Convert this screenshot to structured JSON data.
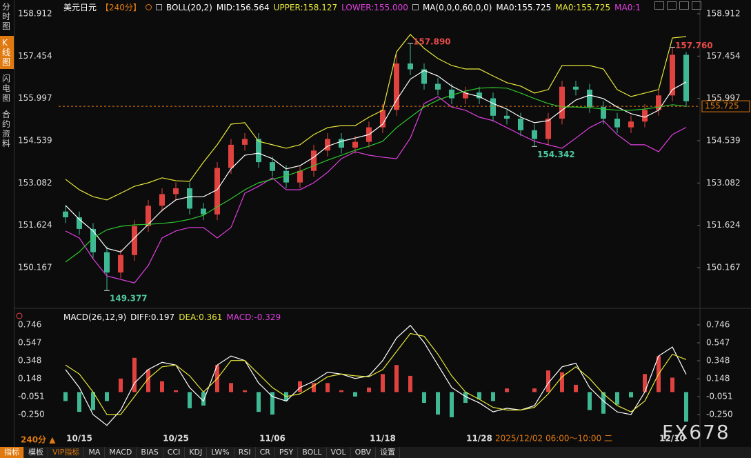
{
  "sidebar": {
    "tabs": [
      "分时图",
      "K线图",
      "闪电图",
      "合约资料"
    ],
    "active": 1
  },
  "header": [
    {
      "text": "美元日元",
      "color": "#ffffff"
    },
    {
      "text": "【240分】",
      "color": "#e07a10"
    },
    {
      "text": "BOLL(20,2)",
      "color": "#ffffff"
    },
    {
      "text": "MID:156.564",
      "color": "#ffffff"
    },
    {
      "text": "UPPER:158.127",
      "color": "#e8e83a"
    },
    {
      "text": "LOWER:155.000",
      "color": "#e040e0"
    },
    {
      "text": "MA(0,0,0,60,0,0)",
      "color": "#ffffff"
    },
    {
      "text": "MA0:155.725",
      "color": "#ffffff"
    },
    {
      "text": "MA0:155.725",
      "color": "#e8e83a"
    },
    {
      "text": "MA0:1",
      "color": "#e040e0"
    }
  ],
  "macd_header": [
    {
      "text": "MACD(26,12,9)",
      "color": "#ffffff"
    },
    {
      "text": "DIFF:0.197",
      "color": "#ffffff"
    },
    {
      "text": "DEA:0.361",
      "color": "#e8e83a"
    },
    {
      "text": "MACD:-0.329",
      "color": "#e040e0"
    }
  ],
  "period_label": "240分 ▲",
  "cursor_label": "2025/12/02 06:00～10:00 二",
  "watermark": "FX678",
  "toolbar": {
    "items": [
      "指标",
      "模板",
      "VIP指标",
      "MA",
      "MACD",
      "BIAS",
      "CCI",
      "KDJ",
      "LW%",
      "RSI",
      "CR",
      "PSY",
      "BOLL",
      "VOL",
      "OBV",
      "设置"
    ],
    "active": 0
  },
  "chart_data": [
    {
      "type": "candlestick",
      "categories": [
        null,
        "10/15",
        null,
        null,
        null,
        null,
        null,
        null,
        "10/25",
        null,
        null,
        null,
        null,
        null,
        null,
        "11/06",
        null,
        null,
        null,
        null,
        null,
        null,
        null,
        "11/18",
        null,
        null,
        null,
        null,
        null,
        null,
        "11/28",
        null,
        null,
        null,
        null,
        null,
        null,
        null,
        null,
        null,
        null,
        null,
        null,
        null,
        "12/10",
        null
      ],
      "open": [
        152.1,
        151.9,
        151.5,
        150.7,
        150.0,
        150.6,
        151.6,
        152.3,
        152.7,
        152.9,
        152.2,
        152.0,
        153.6,
        154.4,
        154.6,
        153.8,
        153.5,
        153.1,
        153.5,
        154.2,
        154.6,
        154.3,
        154.5,
        155.0,
        155.6,
        157.2,
        157.0,
        156.5,
        156.3,
        156.0,
        156.2,
        156.0,
        155.4,
        155.3,
        154.9,
        154.6,
        155.3,
        156.4,
        156.3,
        155.7,
        155.3,
        155.0,
        155.2,
        155.6,
        156.1,
        157.5
      ],
      "high": [
        152.3,
        152.1,
        151.7,
        150.9,
        150.8,
        151.8,
        152.5,
        152.9,
        153.1,
        153.1,
        152.4,
        153.8,
        154.6,
        154.8,
        154.8,
        154.0,
        153.7,
        153.7,
        154.4,
        154.8,
        154.8,
        154.7,
        155.2,
        155.8,
        157.5,
        157.89,
        157.2,
        156.7,
        156.5,
        156.4,
        156.4,
        156.2,
        155.6,
        155.5,
        155.1,
        155.5,
        156.6,
        156.6,
        156.5,
        155.9,
        155.5,
        155.4,
        155.8,
        156.3,
        157.76,
        157.6
      ],
      "low": [
        151.7,
        151.3,
        150.5,
        149.377,
        149.8,
        150.4,
        151.4,
        152.1,
        152.5,
        152.0,
        151.8,
        151.8,
        153.4,
        154.2,
        153.6,
        153.3,
        152.9,
        152.9,
        153.3,
        154.0,
        154.1,
        154.1,
        154.3,
        154.8,
        155.4,
        156.8,
        156.3,
        156.1,
        155.8,
        155.8,
        155.8,
        155.2,
        155.1,
        154.7,
        154.342,
        154.4,
        155.1,
        156.1,
        155.5,
        155.1,
        154.8,
        154.8,
        155.0,
        155.4,
        155.9,
        155.7
      ],
      "close": [
        151.9,
        151.5,
        150.7,
        150.0,
        150.6,
        151.6,
        152.3,
        152.7,
        152.9,
        152.2,
        152.0,
        153.6,
        154.4,
        154.6,
        153.8,
        153.5,
        153.1,
        153.5,
        154.2,
        154.6,
        154.3,
        154.5,
        155.0,
        155.6,
        157.2,
        157.0,
        156.5,
        156.3,
        156.0,
        156.2,
        156.0,
        155.4,
        155.3,
        154.9,
        154.6,
        155.3,
        156.4,
        156.3,
        155.7,
        155.3,
        155.0,
        155.2,
        155.6,
        156.1,
        157.5,
        155.9
      ],
      "up_color": "#e0433f",
      "down_color": "#3fb894",
      "series": [
        {
          "color": "#e8e83a",
          "values": [
            153.21,
            152.85,
            152.61,
            152.5,
            152.73,
            152.97,
            153.09,
            153.26,
            153.16,
            153.14,
            153.8,
            154.4,
            155.11,
            155.16,
            154.52,
            154.4,
            154.28,
            154.4,
            154.75,
            154.99,
            155.06,
            155.06,
            155.35,
            155.59,
            157.6,
            158.2,
            157.72,
            157.37,
            157.13,
            157.01,
            157.01,
            156.77,
            156.54,
            156.42,
            156.18,
            156.3,
            157.13,
            157.13,
            157.13,
            157.01,
            156.3,
            156.06,
            156.18,
            156.3,
            158.08,
            158.127
          ]
        },
        {
          "color": "#ffffff",
          "values": [
            152.31,
            151.83,
            151.43,
            150.83,
            150.71,
            151.19,
            151.66,
            152.14,
            152.5,
            152.61,
            152.61,
            152.85,
            153.57,
            154.04,
            154.11,
            153.92,
            153.57,
            153.68,
            153.97,
            154.35,
            154.52,
            154.63,
            154.75,
            155.11,
            155.94,
            156.66,
            156.96,
            156.77,
            156.42,
            156.18,
            156.06,
            155.82,
            155.63,
            155.35,
            155.16,
            155.23,
            155.59,
            155.94,
            156.11,
            155.99,
            155.7,
            155.47,
            155.35,
            155.59,
            156.3,
            156.564
          ]
        },
        {
          "color": "#e040e0",
          "values": [
            151.43,
            151.19,
            150.47,
            149.88,
            149.76,
            149.64,
            150.24,
            151.19,
            151.43,
            151.55,
            151.55,
            151.19,
            151.55,
            152.73,
            152.97,
            153.26,
            152.85,
            152.85,
            153.09,
            153.45,
            153.92,
            154.16,
            154.04,
            153.97,
            153.92,
            154.63,
            155.82,
            156.06,
            155.7,
            155.59,
            155.35,
            155.23,
            154.99,
            154.75,
            154.52,
            154.4,
            154.28,
            154.63,
            154.99,
            155.23,
            154.75,
            154.4,
            154.4,
            154.16,
            154.75,
            155.0
          ]
        },
        {
          "color": "#2ec82e",
          "values": [
            150.36,
            150.71,
            151.19,
            151.47,
            151.59,
            151.64,
            151.66,
            151.69,
            151.74,
            151.83,
            151.97,
            152.26,
            152.54,
            152.85,
            153.09,
            153.21,
            153.33,
            153.49,
            153.68,
            153.87,
            154.04,
            154.21,
            154.35,
            154.52,
            154.99,
            155.35,
            155.7,
            155.94,
            156.11,
            156.25,
            156.35,
            156.37,
            156.35,
            156.18,
            155.99,
            155.82,
            155.7,
            155.7,
            155.68,
            155.63,
            155.59,
            155.59,
            155.63,
            155.7,
            155.78,
            155.725
          ]
        }
      ],
      "annotations": [
        {
          "value": 157.89,
          "label": "157.890",
          "color": "#e84a4a"
        },
        {
          "value": 157.76,
          "label": "157.760",
          "color": "#e84a4a"
        },
        {
          "value": 149.377,
          "label": "149.377",
          "color": "#4ec9a0"
        },
        {
          "value": 154.342,
          "label": "154.342",
          "color": "#4ec9a0"
        }
      ],
      "last_price": {
        "value": 155.725,
        "label": "155.725",
        "color": "#e07a10"
      },
      "ylim": [
        149.169,
        159.197
      ],
      "yticks": [
        158.912,
        157.454,
        155.997,
        154.539,
        153.082,
        151.624,
        150.167
      ]
    },
    {
      "type": "macd",
      "series": [
        {
          "color": "#ffffff",
          "values": [
            0.25,
            0.05,
            -0.25,
            -0.37,
            -0.2,
            0.1,
            0.25,
            0.33,
            0.3,
            0.05,
            -0.1,
            0.3,
            0.4,
            0.35,
            0.1,
            -0.05,
            -0.1,
            0.05,
            0.12,
            0.22,
            0.2,
            0.15,
            0.18,
            0.35,
            0.6,
            0.74,
            0.55,
            0.3,
            0.05,
            -0.05,
            -0.12,
            -0.22,
            -0.18,
            -0.2,
            -0.15,
            0.1,
            0.28,
            0.32,
            0.05,
            -0.1,
            -0.22,
            -0.25,
            0.0,
            0.4,
            0.5,
            0.197
          ]
        },
        {
          "color": "#e8e83a",
          "values": [
            0.3,
            0.2,
            0.0,
            -0.25,
            -0.25,
            -0.05,
            0.15,
            0.28,
            0.3,
            0.18,
            0.0,
            0.15,
            0.35,
            0.35,
            0.2,
            0.05,
            -0.05,
            -0.02,
            0.07,
            0.17,
            0.2,
            0.18,
            0.17,
            0.25,
            0.45,
            0.65,
            0.62,
            0.42,
            0.18,
            0.0,
            -0.08,
            -0.17,
            -0.2,
            -0.2,
            -0.17,
            -0.02,
            0.17,
            0.28,
            0.15,
            -0.02,
            -0.15,
            -0.22,
            -0.1,
            0.2,
            0.42,
            0.361
          ]
        }
      ],
      "histogram": {
        "values": [
          -0.1,
          -0.22,
          -0.2,
          -0.1,
          0.15,
          0.38,
          0.25,
          0.12,
          0.02,
          -0.18,
          -0.15,
          0.3,
          0.1,
          0.02,
          -0.22,
          -0.25,
          -0.1,
          0.12,
          0.1,
          0.1,
          0.02,
          -0.05,
          0.05,
          0.2,
          0.3,
          0.18,
          -0.12,
          -0.25,
          -0.28,
          -0.12,
          -0.08,
          -0.1,
          0.04,
          0.0,
          0.04,
          0.24,
          0.22,
          0.08,
          -0.2,
          -0.24,
          -0.14,
          -0.06,
          0.2,
          0.4,
          0.16,
          -0.329
        ],
        "up_color": "#e0433f",
        "down_color": "#3fb894"
      },
      "ylim": [
        -0.357,
        0.815
      ],
      "yticks": [
        0.746,
        0.547,
        0.348,
        0.148,
        -0.051,
        {
          "value": -0.25,
          "label": "-0.250"
        }
      ]
    }
  ]
}
